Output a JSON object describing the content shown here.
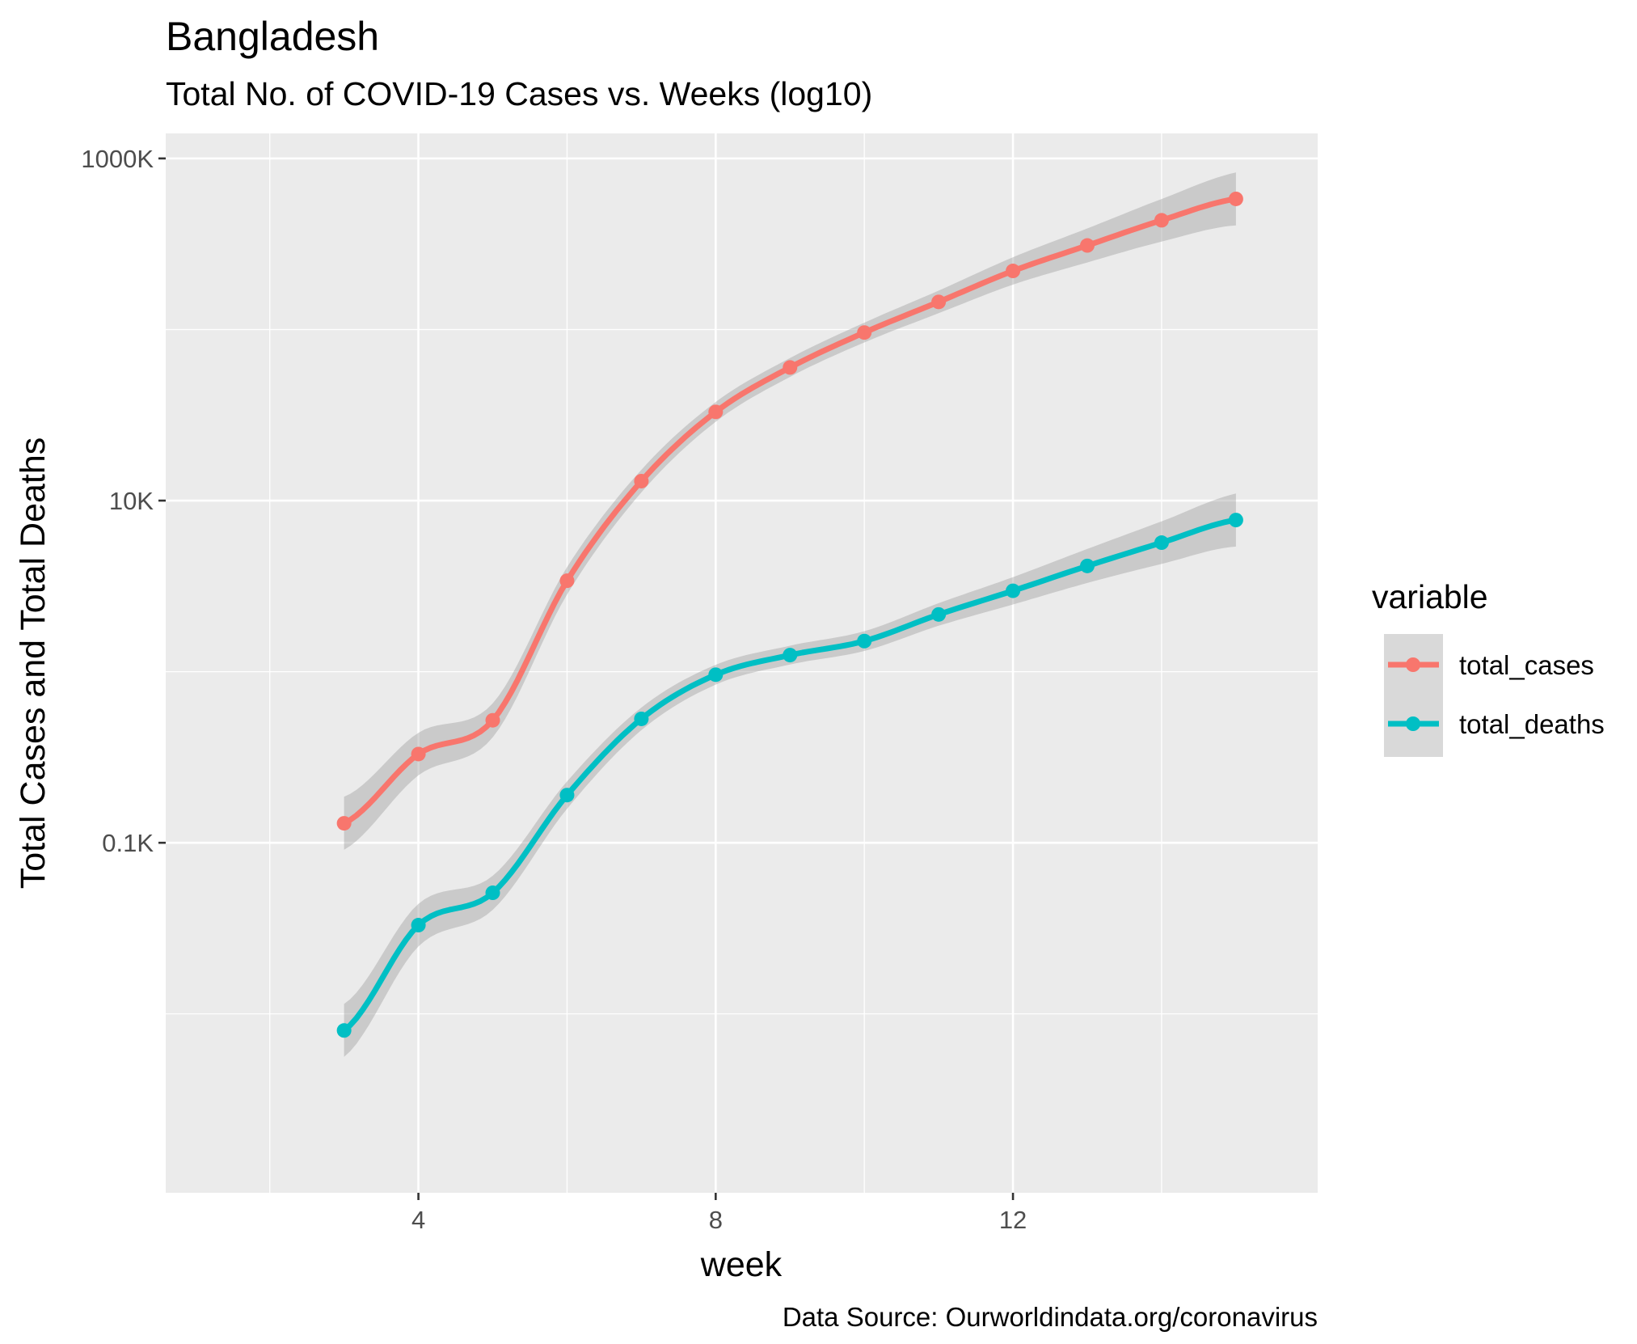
{
  "chart_data": {
    "type": "line",
    "title": "Bangladesh",
    "subtitle": "Total No. of COVID-19 Cases vs. Weeks (log10)",
    "xlabel": "week",
    "ylabel": "Total Cases and Total Deaths",
    "caption": "Data Source: Ourworldindata.org/coronavirus",
    "y_scale": "log10",
    "xlim": [
      0.6,
      16.1
    ],
    "ylim": [
      0.9,
      1400000
    ],
    "x_ticks": [
      4,
      8,
      12
    ],
    "x_tick_labels": [
      "4",
      "8",
      "12"
    ],
    "y_ticks": [
      100,
      10000,
      1000000
    ],
    "y_tick_labels": [
      "0.1K",
      "10K",
      "1000K"
    ],
    "grid": true,
    "legend": {
      "title": "variable",
      "position": "right"
    },
    "smoothing": "loess with gray confidence band",
    "series": [
      {
        "name": "total_cases",
        "color": "#F8766D",
        "x": [
          3,
          4,
          5,
          6,
          7,
          8,
          9,
          10,
          11,
          12,
          13,
          14,
          15
        ],
        "values": [
          130,
          330,
          520,
          3400,
          13000,
          33000,
          60000,
          96000,
          145000,
          220000,
          310000,
          435000,
          580000
        ]
      },
      {
        "name": "total_deaths",
        "color": "#00BFC4",
        "x": [
          3,
          4,
          5,
          6,
          7,
          8,
          9,
          10,
          11,
          12,
          13,
          14,
          15
        ],
        "values": [
          8,
          33,
          51,
          190,
          530,
          960,
          1250,
          1510,
          2160,
          2970,
          4150,
          5680,
          7700
        ]
      }
    ]
  }
}
